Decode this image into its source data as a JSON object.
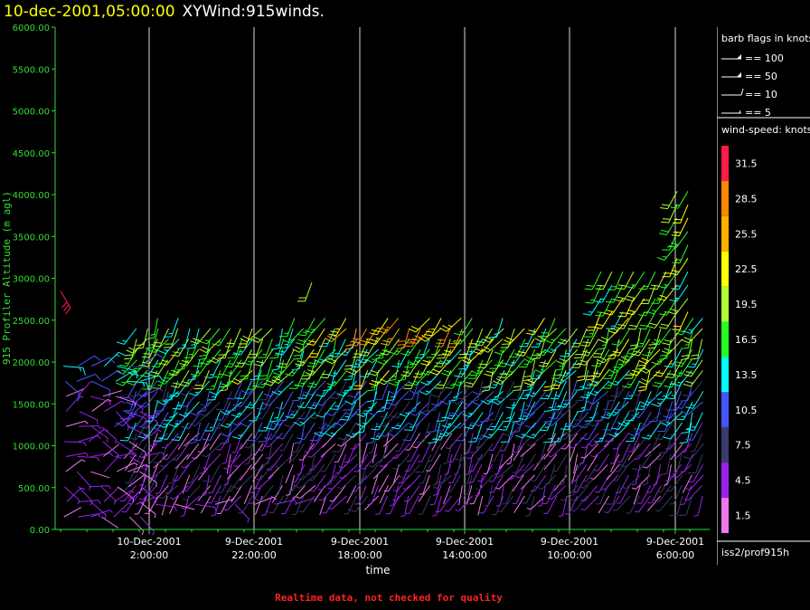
{
  "header": {
    "date_text": "10-dec-2001,05:00:00",
    "title_text": "XYWind:915winds."
  },
  "footer": {
    "note": "Realtime data, not checked for quality"
  },
  "legend": {
    "barb_title": "barb flags in knots",
    "barb_items": [
      {
        "label": "== 100",
        "value": 100
      },
      {
        "label": "== 50",
        "value": 50
      },
      {
        "label": "== 10",
        "value": 10
      },
      {
        "label": "== 5",
        "value": 5
      }
    ],
    "speed_title": "wind-speed: knots",
    "speed_scale": [
      {
        "label": "31.5",
        "color": "#ff1a4a"
      },
      {
        "label": "28.5",
        "color": "#ff8800"
      },
      {
        "label": "25.5",
        "color": "#ffb000"
      },
      {
        "label": "22.5",
        "color": "#ffff00"
      },
      {
        "label": "19.5",
        "color": "#b0ff30"
      },
      {
        "label": "16.5",
        "color": "#22ff22"
      },
      {
        "label": "13.5",
        "color": "#00ffff"
      },
      {
        "label": "10.5",
        "color": "#4455ff"
      },
      {
        "label": "7.5",
        "color": "#3a3a6e"
      },
      {
        "label": "4.5",
        "color": "#9922ee"
      },
      {
        "label": "1.5",
        "color": "#ee77ee"
      }
    ],
    "source": "iss2/prof915h"
  },
  "chart_data": {
    "type": "scatter",
    "ylabel": "915 Profiler Altitude (m agl)",
    "xlabel": "time",
    "ylim": [
      0,
      6000
    ],
    "yticks": [
      "0.00",
      "500.00",
      "1000.00",
      "1500.00",
      "2000.00",
      "2500.00",
      "3000.00",
      "3500.00",
      "4000.00",
      "4500.00",
      "5000.00",
      "5500.00",
      "6000.00"
    ],
    "xticks": [
      {
        "date": "10-Dec-2001",
        "time": "2:00:00"
      },
      {
        "date": "9-Dec-2001",
        "time": "22:00:00"
      },
      {
        "date": "9-Dec-2001",
        "time": "18:00:00"
      },
      {
        "date": "9-Dec-2001",
        "time": "14:00:00"
      },
      {
        "date": "9-Dec-2001",
        "time": "10:00:00"
      },
      {
        "date": "9-Dec-2001",
        "time": "6:00:00"
      }
    ],
    "x_axis_reversed": true,
    "gridlines": "vertical",
    "series_note": "wind barbs colored by wind speed (knots)"
  }
}
